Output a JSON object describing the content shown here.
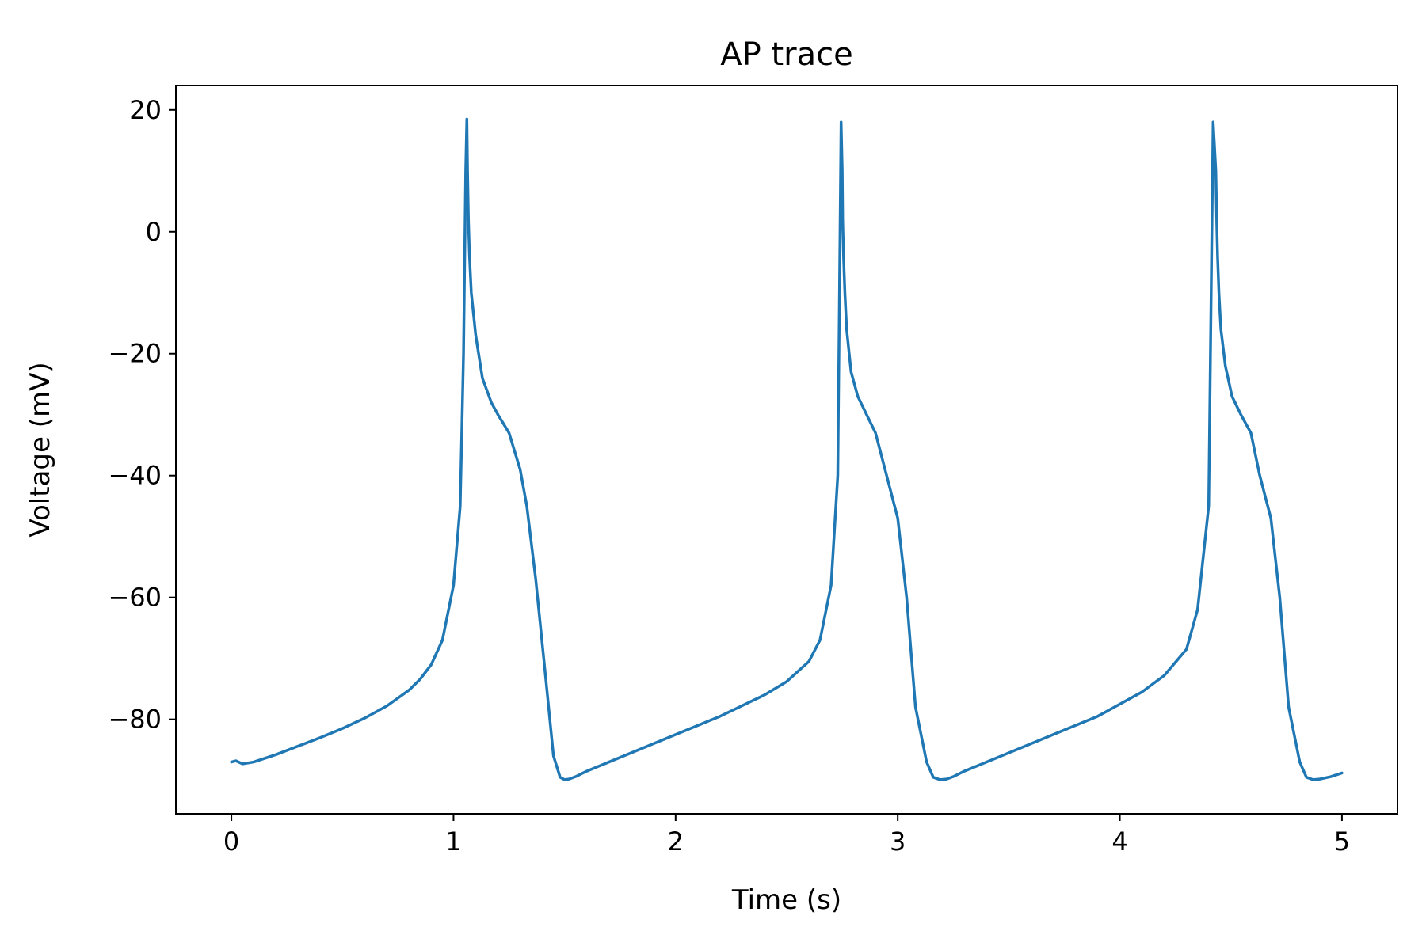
{
  "chart_data": {
    "type": "line",
    "title": "AP trace",
    "xlabel": "Time (s)",
    "ylabel": "Voltage (mV)",
    "xlim": [
      -0.25,
      5.25
    ],
    "ylim": [
      -95.5,
      24
    ],
    "x_ticks": [
      0,
      1,
      2,
      3,
      4,
      5
    ],
    "y_ticks": [
      20,
      0,
      -20,
      -40,
      -60,
      -80
    ],
    "x_tick_labels": [
      "0",
      "1",
      "2",
      "3",
      "4",
      "5"
    ],
    "y_tick_labels": [
      "20",
      "0",
      "−20",
      "−40",
      "−60",
      "−80"
    ],
    "grid": false,
    "legend": "none",
    "series": [
      {
        "color": "#1f77b4",
        "x": [
          0.0,
          0.02,
          0.05,
          0.1,
          0.2,
          0.3,
          0.4,
          0.5,
          0.6,
          0.7,
          0.8,
          0.85,
          0.9,
          0.95,
          1.0,
          1.03,
          1.045,
          1.055,
          1.06,
          1.063,
          1.067,
          1.072,
          1.08,
          1.1,
          1.13,
          1.17,
          1.2,
          1.25,
          1.3,
          1.33,
          1.37,
          1.42,
          1.45,
          1.48,
          1.5,
          1.52,
          1.55,
          1.6,
          1.8,
          2.0,
          2.2,
          2.4,
          2.5,
          2.6,
          2.65,
          2.7,
          2.73,
          2.745,
          2.75,
          2.752,
          2.756,
          2.762,
          2.77,
          2.79,
          2.82,
          2.86,
          2.9,
          2.95,
          3.0,
          3.04,
          3.08,
          3.13,
          3.16,
          3.19,
          3.22,
          3.25,
          3.3,
          3.5,
          3.7,
          3.9,
          4.1,
          4.2,
          4.3,
          4.35,
          4.4,
          4.42,
          4.432,
          4.436,
          4.44,
          4.446,
          4.455,
          4.475,
          4.505,
          4.545,
          4.59,
          4.63,
          4.68,
          4.72,
          4.76,
          4.81,
          4.84,
          4.87,
          4.9,
          4.95,
          5.0
        ],
        "y": [
          -87.0,
          -86.8,
          -87.3,
          -87.0,
          -85.8,
          -84.4,
          -83.0,
          -81.5,
          -79.8,
          -77.8,
          -75.2,
          -73.4,
          -71.0,
          -67.0,
          -58.0,
          -45.0,
          -20.0,
          10.0,
          18.5,
          10.0,
          2.0,
          -4.0,
          -10.0,
          -17.0,
          -24.0,
          -28.0,
          -30.0,
          -33.0,
          -39.0,
          -45.0,
          -57.0,
          -75.0,
          -86.0,
          -89.5,
          -89.9,
          -89.8,
          -89.4,
          -88.5,
          -85.5,
          -82.5,
          -79.5,
          -76.0,
          -73.8,
          -70.5,
          -67.0,
          -58.0,
          -40.0,
          18.0,
          10.0,
          2.0,
          -4.0,
          -10.0,
          -16.0,
          -23.0,
          -27.0,
          -30.0,
          -33.0,
          -40.0,
          -47.0,
          -60.0,
          -78.0,
          -87.0,
          -89.5,
          -89.9,
          -89.8,
          -89.4,
          -88.5,
          -85.5,
          -82.5,
          -79.5,
          -75.5,
          -72.8,
          -68.5,
          -62.0,
          -45.0,
          18.0,
          10.0,
          2.0,
          -4.0,
          -10.0,
          -16.0,
          -22.0,
          -27.0,
          -30.0,
          -33.0,
          -40.0,
          -47.0,
          -60.0,
          -78.0,
          -87.0,
          -89.5,
          -89.9,
          -89.8,
          -89.4,
          -88.8
        ]
      }
    ]
  }
}
